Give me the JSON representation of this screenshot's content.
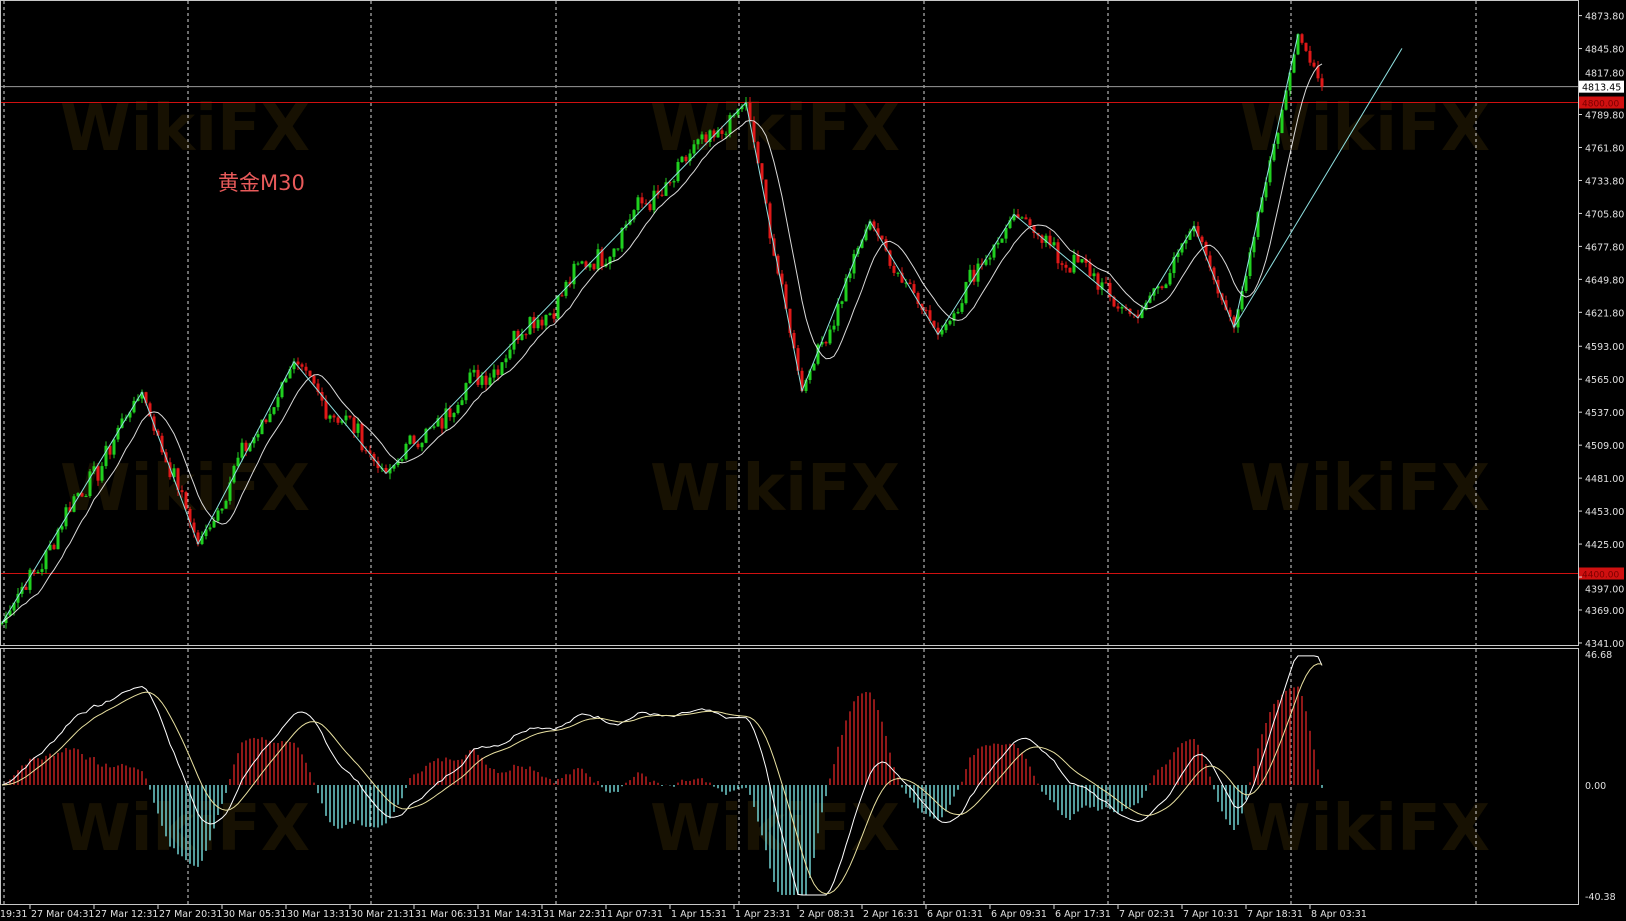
{
  "window": {
    "symbol_label": "黄金M30",
    "watermark": "WikiFX"
  },
  "colors": {
    "background": "#000000",
    "bull": "#1fd01f",
    "bear": "#e01818",
    "zigzag": "#8fe0e0",
    "ma": "#ffffff",
    "level_line": "#d01010",
    "hist_pos": "#c02020",
    "hist_neg": "#70d0d0",
    "macd_line": "#ffffff",
    "signal_line": "#e8e0a0"
  },
  "chart_data": {
    "type": "candlestick",
    "timeframe": "M30",
    "price_axis": {
      "ticks": [
        "4873.80",
        "4845.80",
        "4817.80",
        "4789.80",
        "4761.80",
        "4733.80",
        "4705.80",
        "4677.80",
        "4649.80",
        "4621.80",
        "4593.00",
        "4565.00",
        "4537.00",
        "4509.00",
        "4481.00",
        "4453.00",
        "4425.00",
        "4397.00",
        "4369.00",
        "4341.00"
      ],
      "range": [
        4341.0,
        4873.8
      ]
    },
    "time_axis": {
      "first_clipped_label": "19:31",
      "ticks": [
        {
          "label": "27 Mar 04:31",
          "t": "2026-03-27T04:31"
        },
        {
          "label": "27 Mar 12:31",
          "t": "2026-03-27T12:31"
        },
        {
          "label": "27 Mar 20:31",
          "t": "2026-03-27T20:31"
        },
        {
          "label": "30 Mar 05:31",
          "t": "2026-03-30T05:31"
        },
        {
          "label": "30 Mar 13:31",
          "t": "2026-03-30T13:31"
        },
        {
          "label": "30 Mar 21:31",
          "t": "2026-03-30T21:31"
        },
        {
          "label": "31 Mar 06:31",
          "t": "2026-03-31T06:31"
        },
        {
          "label": "31 Mar 14:31",
          "t": "2026-03-31T14:31"
        },
        {
          "label": "31 Mar 22:31",
          "t": "2026-03-31T22:31"
        },
        {
          "label": "1 Apr 07:31",
          "t": "2026-04-01T07:31"
        },
        {
          "label": "1 Apr 15:31",
          "t": "2026-04-01T15:31"
        },
        {
          "label": "1 Apr 23:31",
          "t": "2026-04-01T23:31"
        },
        {
          "label": "2 Apr 08:31",
          "t": "2026-04-02T08:31"
        },
        {
          "label": "2 Apr 16:31",
          "t": "2026-04-02T16:31"
        },
        {
          "label": "6 Apr 01:31",
          "t": "2026-04-06T01:31"
        },
        {
          "label": "6 Apr 09:31",
          "t": "2026-04-06T09:31"
        },
        {
          "label": "6 Apr 17:31",
          "t": "2026-04-06T17:31"
        },
        {
          "label": "7 Apr 02:31",
          "t": "2026-04-07T02:31"
        },
        {
          "label": "7 Apr 10:31",
          "t": "2026-04-07T10:31"
        },
        {
          "label": "7 Apr 18:31",
          "t": "2026-04-07T18:31"
        },
        {
          "label": "8 Apr 03:31",
          "t": "2026-04-08T03:31"
        }
      ]
    },
    "zigzag": [
      {
        "t": "2026-03-27T01:01",
        "price": 4358
      },
      {
        "t": "2026-03-27T18:31",
        "price": 4554
      },
      {
        "t": "2026-03-30T02:31",
        "price": 4425
      },
      {
        "t": "2026-03-30T14:31",
        "price": 4580
      },
      {
        "t": "2026-03-31T03:01",
        "price": 4485
      },
      {
        "t": "2026-04-02T02:01",
        "price": 4800
      },
      {
        "t": "2026-04-02T09:01",
        "price": 4555
      },
      {
        "t": "2026-04-02T17:31",
        "price": 4699
      },
      {
        "t": "2026-04-06T03:01",
        "price": 4603
      },
      {
        "t": "2026-04-06T12:31",
        "price": 4705
      },
      {
        "t": "2026-04-07T05:01",
        "price": 4617
      },
      {
        "t": "2026-04-07T12:01",
        "price": 4695
      },
      {
        "t": "2026-04-07T17:01",
        "price": 4609
      },
      {
        "t": "2026-04-08T02:01",
        "price": 4858
      },
      {
        "t": "2026-04-08T05:01",
        "price": 4813.45
      }
    ],
    "trendline": [
      {
        "t": "2026-04-07T17:01",
        "price": 4609
      },
      {
        "t": "2026-04-08T15:01",
        "price": 4846
      }
    ],
    "horizontal_levels": [
      {
        "price": 4800.0,
        "label": "4800.00",
        "color": "#d01010"
      },
      {
        "price": 4400.0,
        "label": "4400.00",
        "color": "#d01010"
      }
    ],
    "current_price": {
      "price": 4813.45,
      "label": "4813.45"
    },
    "indicator": {
      "type": "MACD",
      "ticks": [
        {
          "v": 46.68,
          "label": "46.68"
        },
        {
          "v": 0,
          "label": "0.00"
        },
        {
          "v": -40.38,
          "label": "-40.38"
        }
      ],
      "range": [
        -40.38,
        46.68
      ]
    }
  }
}
